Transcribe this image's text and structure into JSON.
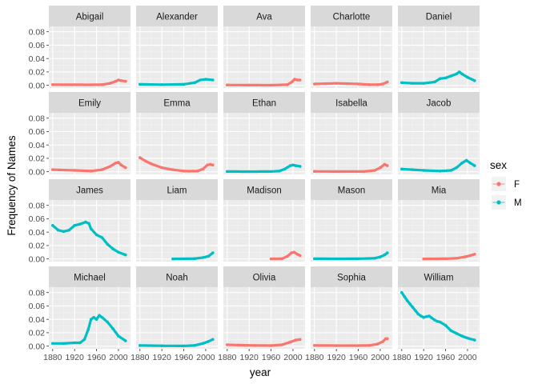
{
  "chart_data": {
    "type": "line",
    "facet_layout": "4 rows x 5 columns, shared axes",
    "xlabel": "year",
    "ylabel": "Frequency of Names",
    "x_ticks": [
      1880,
      1920,
      1960,
      2000
    ],
    "x_tick_labels": [
      "1880",
      "1920",
      "1960",
      "2000"
    ],
    "xlim": [
      1873,
      2022
    ],
    "y_ticks": [
      0,
      0.02,
      0.04,
      0.06,
      0.08
    ],
    "y_tick_labels": [
      "0.00",
      "0.02",
      "0.04",
      "0.06",
      "0.08"
    ],
    "ylim": [
      -0.004,
      0.088
    ],
    "grid": true,
    "legend": {
      "title": "sex",
      "placement": "right",
      "entries": [
        {
          "label": "F",
          "color": "#F8766D"
        },
        {
          "label": "M",
          "color": "#00BFC4"
        }
      ]
    },
    "colors": {
      "F": "#F8766D",
      "M": "#00BFC4"
    },
    "panels": [
      {
        "name": "Abigail",
        "sex": "F",
        "points": [
          [
            1880,
            0.001
          ],
          [
            1950,
            0.0008
          ],
          [
            1970,
            0.001
          ],
          [
            1985,
            0.003
          ],
          [
            1995,
            0.006
          ],
          [
            2000,
            0.008
          ],
          [
            2005,
            0.007
          ],
          [
            2013,
            0.006
          ]
        ]
      },
      {
        "name": "Alexander",
        "sex": "M",
        "points": [
          [
            1880,
            0.0015
          ],
          [
            1920,
            0.001
          ],
          [
            1960,
            0.0015
          ],
          [
            1980,
            0.004
          ],
          [
            1990,
            0.008
          ],
          [
            2000,
            0.009
          ],
          [
            2013,
            0.008
          ]
        ]
      },
      {
        "name": "Ava",
        "sex": "F",
        "points": [
          [
            1880,
            0.0005
          ],
          [
            1920,
            0.0003
          ],
          [
            1960,
            0.0002
          ],
          [
            1990,
            0.001
          ],
          [
            1998,
            0.005
          ],
          [
            2003,
            0.009
          ],
          [
            2008,
            0.008
          ],
          [
            2013,
            0.008
          ]
        ]
      },
      {
        "name": "Charlotte",
        "sex": "F",
        "points": [
          [
            1880,
            0.002
          ],
          [
            1900,
            0.0025
          ],
          [
            1920,
            0.003
          ],
          [
            1940,
            0.0025
          ],
          [
            1960,
            0.002
          ],
          [
            1980,
            0.001
          ],
          [
            1995,
            0.001
          ],
          [
            2005,
            0.002
          ],
          [
            2013,
            0.005
          ]
        ]
      },
      {
        "name": "Daniel",
        "sex": "M",
        "points": [
          [
            1880,
            0.004
          ],
          [
            1900,
            0.003
          ],
          [
            1920,
            0.003
          ],
          [
            1940,
            0.005
          ],
          [
            1950,
            0.01
          ],
          [
            1960,
            0.011
          ],
          [
            1970,
            0.014
          ],
          [
            1980,
            0.017
          ],
          [
            1985,
            0.02
          ],
          [
            1990,
            0.017
          ],
          [
            2000,
            0.012
          ],
          [
            2013,
            0.007
          ]
        ]
      },
      {
        "name": "Emily",
        "sex": "F",
        "points": [
          [
            1880,
            0.003
          ],
          [
            1920,
            0.002
          ],
          [
            1950,
            0.001
          ],
          [
            1970,
            0.003
          ],
          [
            1985,
            0.008
          ],
          [
            1995,
            0.013
          ],
          [
            2000,
            0.014
          ],
          [
            2005,
            0.01
          ],
          [
            2013,
            0.006
          ]
        ]
      },
      {
        "name": "Emma",
        "sex": "F",
        "points": [
          [
            1880,
            0.021
          ],
          [
            1890,
            0.016
          ],
          [
            1900,
            0.012
          ],
          [
            1920,
            0.006
          ],
          [
            1940,
            0.003
          ],
          [
            1960,
            0.001
          ],
          [
            1970,
            0.0008
          ],
          [
            1985,
            0.001
          ],
          [
            1995,
            0.004
          ],
          [
            2003,
            0.01
          ],
          [
            2008,
            0.011
          ],
          [
            2013,
            0.01
          ]
        ]
      },
      {
        "name": "Ethan",
        "sex": "M",
        "points": [
          [
            1880,
            0.0003
          ],
          [
            1920,
            0.0002
          ],
          [
            1960,
            0.0003
          ],
          [
            1975,
            0.001
          ],
          [
            1985,
            0.004
          ],
          [
            1995,
            0.009
          ],
          [
            2000,
            0.01
          ],
          [
            2005,
            0.009
          ],
          [
            2013,
            0.008
          ]
        ]
      },
      {
        "name": "Isabella",
        "sex": "F",
        "points": [
          [
            1880,
            0.0005
          ],
          [
            1920,
            0.0003
          ],
          [
            1970,
            0.0003
          ],
          [
            1990,
            0.002
          ],
          [
            2000,
            0.006
          ],
          [
            2008,
            0.011
          ],
          [
            2013,
            0.009
          ]
        ]
      },
      {
        "name": "Jacob",
        "sex": "M",
        "points": [
          [
            1880,
            0.004
          ],
          [
            1900,
            0.003
          ],
          [
            1920,
            0.002
          ],
          [
            1950,
            0.001
          ],
          [
            1970,
            0.002
          ],
          [
            1980,
            0.006
          ],
          [
            1990,
            0.013
          ],
          [
            1998,
            0.017
          ],
          [
            2005,
            0.013
          ],
          [
            2013,
            0.009
          ]
        ]
      },
      {
        "name": "James",
        "sex": "M",
        "points": [
          [
            1880,
            0.05
          ],
          [
            1890,
            0.043
          ],
          [
            1900,
            0.041
          ],
          [
            1910,
            0.043
          ],
          [
            1920,
            0.05
          ],
          [
            1930,
            0.052
          ],
          [
            1940,
            0.055
          ],
          [
            1946,
            0.053
          ],
          [
            1950,
            0.045
          ],
          [
            1960,
            0.036
          ],
          [
            1970,
            0.032
          ],
          [
            1980,
            0.022
          ],
          [
            1990,
            0.015
          ],
          [
            2000,
            0.01
          ],
          [
            2013,
            0.006
          ]
        ]
      },
      {
        "name": "Liam",
        "sex": "M",
        "points": [
          [
            1940,
            0.0001
          ],
          [
            1960,
            0.0002
          ],
          [
            1980,
            0.0005
          ],
          [
            1995,
            0.002
          ],
          [
            2005,
            0.004
          ],
          [
            2013,
            0.009
          ]
        ]
      },
      {
        "name": "Madison",
        "sex": "F",
        "points": [
          [
            1960,
            0.0001
          ],
          [
            1980,
            0.0003
          ],
          [
            1990,
            0.004
          ],
          [
            1997,
            0.009
          ],
          [
            2002,
            0.01
          ],
          [
            2008,
            0.007
          ],
          [
            2013,
            0.005
          ]
        ]
      },
      {
        "name": "Mason",
        "sex": "M",
        "points": [
          [
            1880,
            0.0003
          ],
          [
            1920,
            0.0002
          ],
          [
            1960,
            0.0003
          ],
          [
            1990,
            0.001
          ],
          [
            2000,
            0.003
          ],
          [
            2008,
            0.006
          ],
          [
            2013,
            0.009
          ]
        ]
      },
      {
        "name": "Mia",
        "sex": "F",
        "points": [
          [
            1920,
            0.0001
          ],
          [
            1960,
            0.0003
          ],
          [
            1980,
            0.001
          ],
          [
            1995,
            0.003
          ],
          [
            2005,
            0.005
          ],
          [
            2013,
            0.007
          ]
        ]
      },
      {
        "name": "Michael",
        "sex": "M",
        "points": [
          [
            1880,
            0.004
          ],
          [
            1900,
            0.004
          ],
          [
            1920,
            0.005
          ],
          [
            1930,
            0.005
          ],
          [
            1938,
            0.01
          ],
          [
            1945,
            0.025
          ],
          [
            1950,
            0.04
          ],
          [
            1955,
            0.043
          ],
          [
            1960,
            0.04
          ],
          [
            1965,
            0.046
          ],
          [
            1970,
            0.043
          ],
          [
            1980,
            0.036
          ],
          [
            1990,
            0.026
          ],
          [
            2000,
            0.015
          ],
          [
            2013,
            0.008
          ]
        ]
      },
      {
        "name": "Noah",
        "sex": "M",
        "points": [
          [
            1880,
            0.001
          ],
          [
            1920,
            0.0005
          ],
          [
            1960,
            0.0003
          ],
          [
            1980,
            0.001
          ],
          [
            1995,
            0.004
          ],
          [
            2005,
            0.007
          ],
          [
            2013,
            0.01
          ]
        ]
      },
      {
        "name": "Olivia",
        "sex": "F",
        "points": [
          [
            1880,
            0.002
          ],
          [
            1900,
            0.0015
          ],
          [
            1930,
            0.001
          ],
          [
            1960,
            0.0008
          ],
          [
            1980,
            0.002
          ],
          [
            1995,
            0.006
          ],
          [
            2005,
            0.009
          ],
          [
            2013,
            0.01
          ]
        ]
      },
      {
        "name": "Sophia",
        "sex": "F",
        "points": [
          [
            1880,
            0.001
          ],
          [
            1920,
            0.0008
          ],
          [
            1960,
            0.0008
          ],
          [
            1980,
            0.001
          ],
          [
            1995,
            0.003
          ],
          [
            2005,
            0.007
          ],
          [
            2010,
            0.011
          ],
          [
            2013,
            0.011
          ]
        ]
      },
      {
        "name": "William",
        "sex": "M",
        "points": [
          [
            1880,
            0.08
          ],
          [
            1885,
            0.074
          ],
          [
            1890,
            0.068
          ],
          [
            1895,
            0.063
          ],
          [
            1900,
            0.058
          ],
          [
            1905,
            0.053
          ],
          [
            1910,
            0.048
          ],
          [
            1915,
            0.045
          ],
          [
            1920,
            0.043
          ],
          [
            1925,
            0.044
          ],
          [
            1930,
            0.045
          ],
          [
            1935,
            0.042
          ],
          [
            1940,
            0.039
          ],
          [
            1945,
            0.037
          ],
          [
            1950,
            0.036
          ],
          [
            1960,
            0.031
          ],
          [
            1970,
            0.023
          ],
          [
            1980,
            0.019
          ],
          [
            1990,
            0.015
          ],
          [
            2000,
            0.012
          ],
          [
            2013,
            0.009
          ]
        ]
      }
    ]
  }
}
